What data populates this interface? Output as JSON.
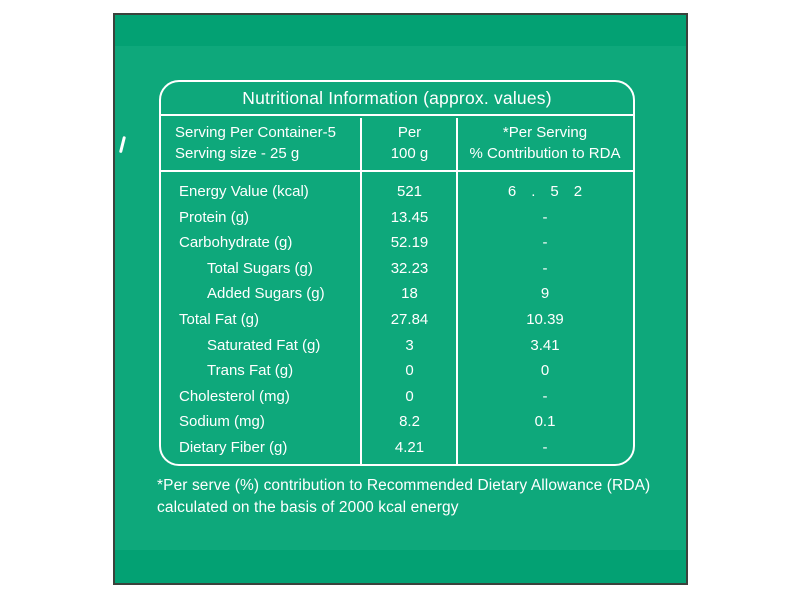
{
  "panel": {
    "colors": {
      "main_green": "#0ea87b",
      "band_green": "#03a173",
      "border_dark": "#3a423c",
      "text_white": "#ffffff"
    }
  },
  "table": {
    "title": "Nutritional Information (approx. values)",
    "header": {
      "col1_line1": "Serving Per Container-5",
      "col1_line2": "Serving size - 25 g",
      "col2_line1": "Per",
      "col2_line2": "100 g",
      "col3_line1": "*Per Serving",
      "col3_line2": "% Contribution to RDA"
    },
    "rows": [
      {
        "label": "Energy Value (kcal)",
        "per100g": "521",
        "rda": "6  .  5  2",
        "indent": false
      },
      {
        "label": "Protein (g)",
        "per100g": "13.45",
        "rda": "-",
        "indent": false
      },
      {
        "label": "Carbohydrate (g)",
        "per100g": "52.19",
        "rda": "-",
        "indent": false
      },
      {
        "label": "Total Sugars (g)",
        "per100g": "32.23",
        "rda": "-",
        "indent": true
      },
      {
        "label": "Added Sugars (g)",
        "per100g": "18",
        "rda": "9",
        "indent": true
      },
      {
        "label": "Total Fat (g)",
        "per100g": "27.84",
        "rda": "10.39",
        "indent": false
      },
      {
        "label": "Saturated Fat (g)",
        "per100g": "3",
        "rda": "3.41",
        "indent": true
      },
      {
        "label": "Trans Fat (g)",
        "per100g": "0",
        "rda": "0",
        "indent": true
      },
      {
        "label": "Cholesterol (mg)",
        "per100g": "0",
        "rda": "-",
        "indent": false
      },
      {
        "label": "Sodium (mg)",
        "per100g": "8.2",
        "rda": "0.1",
        "indent": false
      },
      {
        "label": "Dietary Fiber (g)",
        "per100g": "4.21",
        "rda": "-",
        "indent": false
      }
    ]
  },
  "footnote": {
    "line1": "*Per serve (%) contribution to Recommended Dietary Allowance (RDA)",
    "line2": "calculated on the basis of 2000 kcal energy"
  }
}
